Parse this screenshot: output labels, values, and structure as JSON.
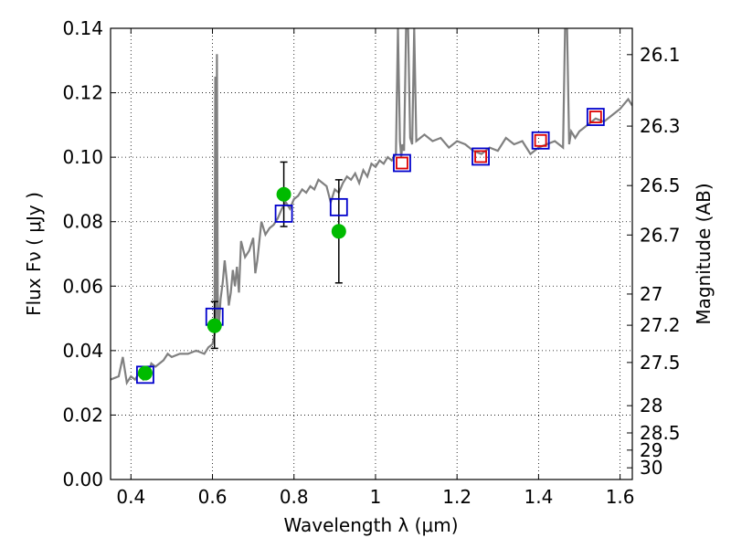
{
  "chart_data": {
    "type": "scatter",
    "title": "",
    "xlabel": "Wavelength  λ (μm)",
    "ylabel": "Flux  Fν  ( μJy )",
    "y2label": "Magnitude (AB)",
    "xlim": [
      0.35,
      1.63
    ],
    "ylim": [
      0.0,
      0.14
    ],
    "grid": true,
    "x_ticks": [
      "0.4",
      "0.6",
      "0.8",
      "1",
      "1.2",
      "1.4",
      "1.6"
    ],
    "y_ticks": [
      "0.00",
      "0.02",
      "0.04",
      "0.06",
      "0.08",
      "0.10",
      "0.12",
      "0.14"
    ],
    "y2_ticks": [
      {
        "label": "26.1",
        "mag": 26.1
      },
      {
        "label": "26.3",
        "mag": 26.3
      },
      {
        "label": "26.5",
        "mag": 26.5
      },
      {
        "label": "26.7",
        "mag": 26.7
      },
      {
        "label": "27",
        "mag": 27.0
      },
      {
        "label": "27.2",
        "mag": 27.2
      },
      {
        "label": "27.5",
        "mag": 27.5
      },
      {
        "label": "28",
        "mag": 28.0
      },
      {
        "label": "28.5",
        "mag": 28.5
      },
      {
        "label": "29",
        "mag": 29.0
      },
      {
        "label": "30",
        "mag": 30.0
      }
    ],
    "series": [
      {
        "kind": "line",
        "color": "#808080",
        "x": [
          0.35,
          0.37,
          0.38,
          0.39,
          0.4,
          0.41,
          0.42,
          0.43,
          0.44,
          0.45,
          0.46,
          0.47,
          0.48,
          0.49,
          0.5,
          0.52,
          0.54,
          0.56,
          0.58,
          0.59,
          0.6,
          0.605,
          0.607,
          0.609,
          0.611,
          0.613,
          0.615,
          0.62,
          0.625,
          0.63,
          0.635,
          0.64,
          0.645,
          0.65,
          0.655,
          0.66,
          0.665,
          0.67,
          0.68,
          0.69,
          0.7,
          0.705,
          0.71,
          0.72,
          0.73,
          0.74,
          0.75,
          0.76,
          0.77,
          0.78,
          0.79,
          0.8,
          0.81,
          0.82,
          0.83,
          0.84,
          0.85,
          0.86,
          0.87,
          0.88,
          0.89,
          0.9,
          0.91,
          0.92,
          0.93,
          0.94,
          0.95,
          0.96,
          0.97,
          0.98,
          0.99,
          1.0,
          1.01,
          1.02,
          1.03,
          1.04,
          1.05,
          1.055,
          1.06,
          1.063,
          1.066,
          1.07,
          1.075,
          1.08,
          1.085,
          1.09,
          1.095,
          1.1,
          1.12,
          1.14,
          1.16,
          1.18,
          1.2,
          1.22,
          1.24,
          1.26,
          1.28,
          1.3,
          1.32,
          1.34,
          1.36,
          1.38,
          1.4,
          1.42,
          1.44,
          1.46,
          1.465,
          1.47,
          1.475,
          1.48,
          1.49,
          1.5,
          1.52,
          1.54,
          1.56,
          1.58,
          1.6,
          1.62,
          1.63
        ],
        "y": [
          0.031,
          0.032,
          0.038,
          0.03,
          0.032,
          0.031,
          0.033,
          0.031,
          0.032,
          0.036,
          0.035,
          0.036,
          0.037,
          0.039,
          0.038,
          0.039,
          0.039,
          0.04,
          0.039,
          0.041,
          0.042,
          0.045,
          0.125,
          0.046,
          0.132,
          0.058,
          0.046,
          0.056,
          0.061,
          0.068,
          0.062,
          0.054,
          0.058,
          0.065,
          0.06,
          0.066,
          0.058,
          0.074,
          0.069,
          0.071,
          0.075,
          0.064,
          0.068,
          0.08,
          0.076,
          0.078,
          0.079,
          0.081,
          0.084,
          0.086,
          0.084,
          0.087,
          0.088,
          0.09,
          0.089,
          0.091,
          0.09,
          0.093,
          0.092,
          0.091,
          0.086,
          0.09,
          0.089,
          0.092,
          0.094,
          0.093,
          0.095,
          0.092,
          0.096,
          0.094,
          0.098,
          0.097,
          0.099,
          0.098,
          0.1,
          0.099,
          0.101,
          0.14,
          0.105,
          0.1,
          0.104,
          0.102,
          0.14,
          0.14,
          0.106,
          0.104,
          0.14,
          0.105,
          0.107,
          0.105,
          0.106,
          0.103,
          0.105,
          0.104,
          0.102,
          0.101,
          0.103,
          0.102,
          0.106,
          0.104,
          0.105,
          0.101,
          0.103,
          0.104,
          0.105,
          0.103,
          0.14,
          0.14,
          0.104,
          0.108,
          0.106,
          0.108,
          0.11,
          0.112,
          0.111,
          0.113,
          0.115,
          0.118,
          0.116
        ]
      },
      {
        "kind": "markers-square",
        "color": "#0000cc",
        "x": [
          0.435,
          0.605,
          0.775,
          0.91,
          1.065,
          1.258,
          1.405,
          1.54
        ],
        "y": [
          0.0325,
          0.0505,
          0.0825,
          0.0845,
          0.0982,
          0.1002,
          0.1052,
          0.1125
        ]
      },
      {
        "kind": "markers-square",
        "color": "#dd0000",
        "x": [
          1.065,
          1.258,
          1.405,
          1.54
        ],
        "y": [
          0.0982,
          0.1002,
          0.1052,
          0.1125
        ]
      },
      {
        "kind": "markers-circle",
        "color": "#00bb00",
        "x": [
          0.435,
          0.605,
          0.775,
          0.91
        ],
        "y": [
          0.033,
          0.0477,
          0.0885,
          0.077
        ],
        "yerr_low": [
          0.0,
          0.007,
          0.01,
          0.016
        ],
        "yerr_high": [
          0.0,
          0.0075,
          0.01,
          0.016
        ]
      }
    ]
  }
}
